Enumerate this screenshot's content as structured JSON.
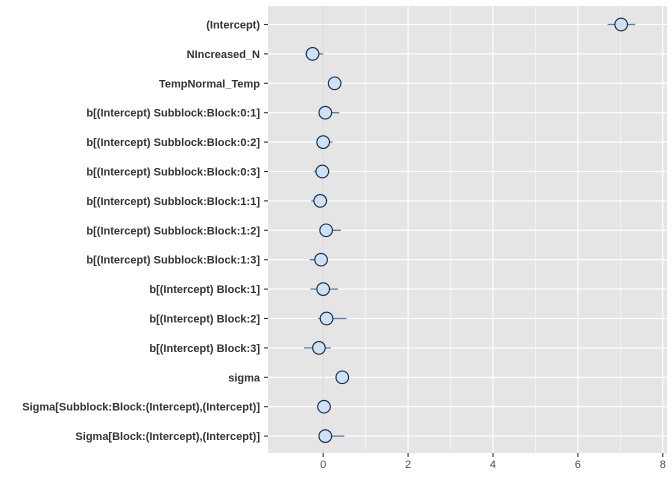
{
  "chart_data": {
    "type": "scatter",
    "title": "",
    "xlabel": "",
    "ylabel": "",
    "xlim": [
      -1.3,
      8.1
    ],
    "x_ticks": [
      "0",
      "2",
      "4",
      "6",
      "8"
    ],
    "x_tick_values": [
      0,
      2,
      4,
      6,
      8
    ],
    "grid": true,
    "colors": {
      "panel_bg": "#e5e5e5",
      "grid": "#ffffff",
      "point_fill": "#cfe1f2",
      "point_stroke": "#0b2a4a",
      "interval": "#5a7fa8",
      "zero_line": "#d4d4d4"
    },
    "parameters": [
      {
        "label": "(Intercept)",
        "estimate": 7.02,
        "low": 6.7,
        "high": 7.35
      },
      {
        "label": "NIncreased_N",
        "estimate": -0.25,
        "low": -0.42,
        "high": 0.0
      },
      {
        "label": "TempNormal_Temp",
        "estimate": 0.27,
        "low": 0.14,
        "high": 0.42
      },
      {
        "label": "b[(Intercept) Subblock:Block:0:1]",
        "estimate": 0.05,
        "low": -0.08,
        "high": 0.38
      },
      {
        "label": "b[(Intercept) Subblock:Block:0:2]",
        "estimate": 0.0,
        "low": -0.13,
        "high": 0.22
      },
      {
        "label": "b[(Intercept) Subblock:Block:0:3]",
        "estimate": -0.02,
        "low": -0.22,
        "high": 0.15
      },
      {
        "label": "b[(Intercept) Subblock:Block:1:1]",
        "estimate": -0.07,
        "low": -0.28,
        "high": 0.1
      },
      {
        "label": "b[(Intercept) Subblock:Block:1:2]",
        "estimate": 0.07,
        "low": -0.05,
        "high": 0.42
      },
      {
        "label": "b[(Intercept) Subblock:Block:1:3]",
        "estimate": -0.05,
        "low": -0.32,
        "high": 0.06
      },
      {
        "label": "b[(Intercept) Block:1]",
        "estimate": 0.0,
        "low": -0.3,
        "high": 0.35
      },
      {
        "label": "b[(Intercept) Block:2]",
        "estimate": 0.08,
        "low": -0.12,
        "high": 0.55
      },
      {
        "label": "b[(Intercept) Block:3]",
        "estimate": -0.1,
        "low": -0.45,
        "high": 0.18
      },
      {
        "label": "sigma",
        "estimate": 0.45,
        "low": 0.37,
        "high": 0.56
      },
      {
        "label": "Sigma[Subblock:Block:(Intercept),(Intercept)]",
        "estimate": 0.02,
        "low": 0.0,
        "high": 0.12
      },
      {
        "label": "Sigma[Block:(Intercept),(Intercept)]",
        "estimate": 0.05,
        "low": 0.0,
        "high": 0.5
      }
    ]
  }
}
